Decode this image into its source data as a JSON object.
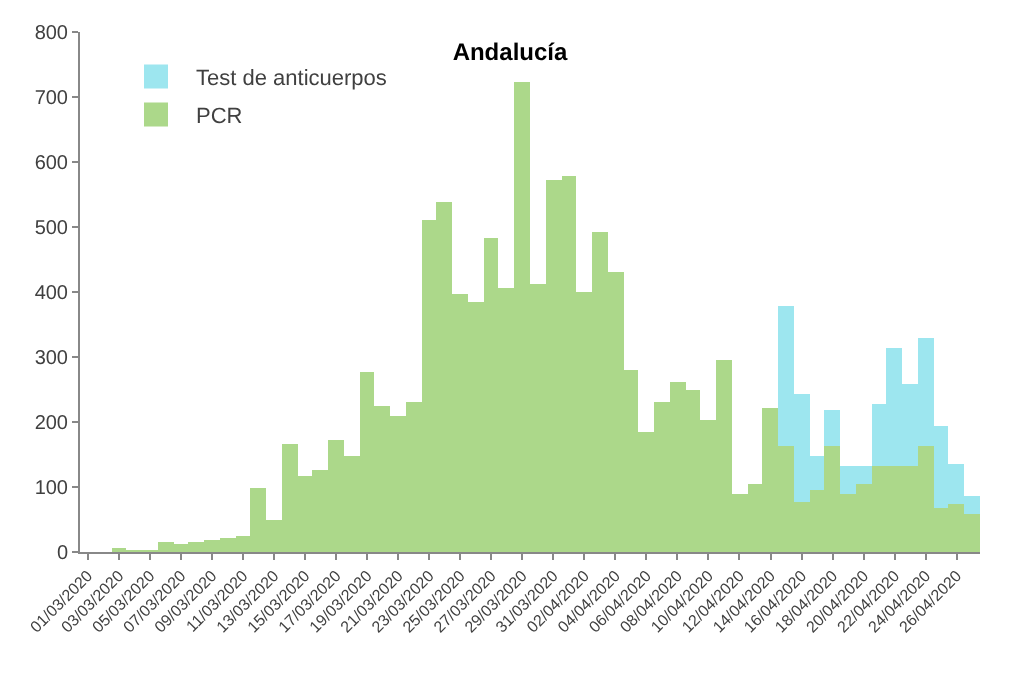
{
  "chart_data": {
    "type": "bar",
    "title": "Andalucía",
    "stacked": true,
    "categories": [
      "01/03/2020",
      null,
      "03/03/2020",
      null,
      "05/03/2020",
      null,
      "07/03/2020",
      null,
      "09/03/2020",
      null,
      "11/03/2020",
      null,
      "13/03/2020",
      null,
      "15/03/2020",
      null,
      "17/03/2020",
      null,
      "19/03/2020",
      null,
      "21/03/2020",
      null,
      "23/03/2020",
      null,
      "25/03/2020",
      null,
      "27/03/2020",
      null,
      "29/03/2020",
      null,
      "31/03/2020",
      null,
      "02/04/2020",
      null,
      "04/04/2020",
      null,
      "06/04/2020",
      null,
      "08/04/2020",
      null,
      "10/04/2020",
      null,
      "12/04/2020",
      null,
      "14/04/2020",
      null,
      "16/04/2020",
      null,
      "18/04/2020",
      null,
      "20/04/2020",
      null,
      "22/04/2020",
      null,
      "24/04/2020",
      null,
      "26/04/2020",
      null
    ],
    "series": [
      {
        "name": "PCR",
        "color": "#acd88a",
        "values": [
          0,
          0,
          5,
          3,
          3,
          15,
          13,
          15,
          18,
          22,
          25,
          100,
          48,
          167,
          117,
          125,
          172,
          148,
          278,
          225,
          208,
          232,
          510,
          540,
          397,
          385,
          483,
          405,
          723,
          412,
          573,
          580,
          401,
          493,
          432,
          279,
          185,
          230,
          261,
          248,
          202,
          294,
          88,
          105,
          223,
          164,
          78,
          95,
          163,
          90,
          105,
          131,
          131,
          131,
          164,
          69,
          75,
          59
        ]
      },
      {
        "name": "Test de anticuerpos",
        "color": "#9de6ef",
        "values": [
          0,
          0,
          0,
          0,
          0,
          0,
          0,
          0,
          0,
          0,
          0,
          0,
          0,
          0,
          0,
          0,
          0,
          0,
          0,
          0,
          0,
          0,
          0,
          0,
          0,
          0,
          0,
          0,
          0,
          0,
          0,
          0,
          0,
          0,
          0,
          0,
          0,
          0,
          0,
          0,
          0,
          0,
          0,
          0,
          0,
          215,
          165,
          53,
          57,
          41,
          26,
          97,
          184,
          127,
          164,
          126,
          61,
          28
        ]
      }
    ],
    "ylim": [
      0,
      800
    ],
    "yticks": [
      0,
      100,
      200,
      300,
      400,
      500,
      600,
      700,
      800
    ],
    "legend": "top left"
  }
}
